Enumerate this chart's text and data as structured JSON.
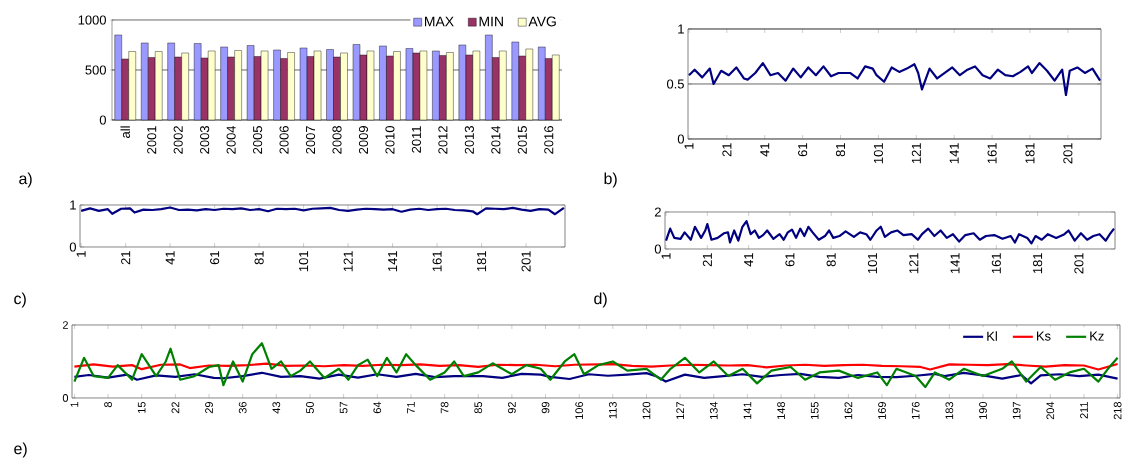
{
  "chart_data": [
    {
      "type": "bar",
      "categories": [
        "all",
        "2001",
        "2002",
        "2003",
        "2004",
        "2005",
        "2006",
        "2007",
        "2008",
        "2009",
        "2010",
        "2011",
        "2012",
        "2013",
        "2014",
        "2015",
        "2016"
      ],
      "series": [
        {
          "name": "MAX",
          "color": "#9999ff",
          "values": [
            850,
            770,
            770,
            765,
            730,
            745,
            700,
            720,
            705,
            755,
            740,
            715,
            690,
            750,
            850,
            780,
            730
          ]
        },
        {
          "name": "MIN",
          "color": "#993366",
          "values": [
            610,
            625,
            630,
            620,
            630,
            635,
            615,
            635,
            630,
            650,
            640,
            670,
            645,
            650,
            625,
            640,
            615
          ]
        },
        {
          "name": "AVG",
          "color": "#ffffcc",
          "values": [
            685,
            685,
            670,
            690,
            695,
            690,
            675,
            690,
            670,
            690,
            685,
            690,
            675,
            690,
            690,
            710,
            650
          ]
        }
      ],
      "ylim": [
        0,
        1000
      ],
      "yticks": [
        0,
        500,
        1000
      ],
      "grid": "y",
      "legend": "top right",
      "annotations": [
        "a)"
      ]
    },
    {
      "type": "line",
      "series": [
        {
          "color": "#000080",
          "x": [
            1,
            4,
            8,
            12,
            14,
            18,
            22,
            26,
            30,
            32,
            36,
            40,
            44,
            48,
            52,
            56,
            60,
            64,
            68,
            72,
            76,
            80,
            82,
            86,
            90,
            94,
            98,
            100,
            104,
            108,
            112,
            116,
            120,
            122,
            124,
            128,
            132,
            136,
            140,
            144,
            148,
            152,
            156,
            160,
            164,
            168,
            172,
            176,
            180,
            182,
            186,
            190,
            194,
            198,
            200,
            202,
            206,
            210,
            214,
            218
          ],
          "values": [
            0.58,
            0.63,
            0.56,
            0.64,
            0.5,
            0.62,
            0.58,
            0.65,
            0.55,
            0.54,
            0.6,
            0.69,
            0.58,
            0.6,
            0.53,
            0.64,
            0.56,
            0.65,
            0.58,
            0.66,
            0.57,
            0.6,
            0.6,
            0.6,
            0.55,
            0.66,
            0.64,
            0.58,
            0.52,
            0.65,
            0.61,
            0.64,
            0.68,
            0.6,
            0.45,
            0.64,
            0.55,
            0.6,
            0.65,
            0.58,
            0.63,
            0.66,
            0.58,
            0.55,
            0.63,
            0.58,
            0.57,
            0.61,
            0.66,
            0.6,
            0.69,
            0.62,
            0.53,
            0.63,
            0.4,
            0.62,
            0.65,
            0.6,
            0.64,
            0.53
          ]
        }
      ],
      "xlim": [
        0.5,
        218.5
      ],
      "xticks": [
        1,
        21,
        41,
        61,
        81,
        101,
        121,
        141,
        161,
        181,
        201
      ],
      "ylim": [
        0,
        1
      ],
      "yticks": [
        0,
        0.5,
        1
      ],
      "grid": "y",
      "annotations": [
        "b)"
      ]
    },
    {
      "type": "line",
      "series": [
        {
          "color": "#000080",
          "x": [
            1,
            5,
            9,
            13,
            15,
            19,
            23,
            25,
            29,
            33,
            37,
            41,
            45,
            49,
            53,
            57,
            61,
            65,
            69,
            73,
            77,
            81,
            85,
            89,
            93,
            97,
            101,
            105,
            109,
            113,
            117,
            121,
            125,
            129,
            133,
            137,
            141,
            145,
            149,
            153,
            157,
            161,
            165,
            169,
            173,
            177,
            179,
            183,
            187,
            191,
            195,
            199,
            203,
            207,
            211,
            214,
            218
          ],
          "values": [
            0.86,
            0.92,
            0.86,
            0.9,
            0.79,
            0.91,
            0.92,
            0.82,
            0.89,
            0.88,
            0.9,
            0.94,
            0.88,
            0.89,
            0.87,
            0.9,
            0.88,
            0.91,
            0.9,
            0.92,
            0.88,
            0.9,
            0.85,
            0.91,
            0.9,
            0.91,
            0.87,
            0.91,
            0.92,
            0.93,
            0.88,
            0.86,
            0.89,
            0.91,
            0.9,
            0.89,
            0.9,
            0.84,
            0.89,
            0.91,
            0.88,
            0.9,
            0.91,
            0.88,
            0.87,
            0.85,
            0.78,
            0.92,
            0.91,
            0.9,
            0.93,
            0.89,
            0.86,
            0.9,
            0.89,
            0.78,
            0.93
          ]
        }
      ],
      "xlim": [
        0.5,
        218.5
      ],
      "xticks": [
        1,
        21,
        41,
        61,
        81,
        101,
        121,
        141,
        161,
        181,
        201
      ],
      "ylim": [
        0,
        1
      ],
      "yticks": [
        0,
        1
      ],
      "annotations": [
        "c)"
      ]
    },
    {
      "type": "line",
      "series": [
        {
          "color": "#000080",
          "x": [
            1,
            3,
            5,
            8,
            10,
            13,
            15,
            18,
            20,
            21,
            23,
            26,
            29,
            31,
            32,
            34,
            36,
            38,
            40,
            42,
            44,
            46,
            48,
            50,
            53,
            56,
            58,
            60,
            62,
            64,
            66,
            68,
            70,
            72,
            75,
            78,
            80,
            82,
            85,
            88,
            92,
            95,
            98,
            100,
            103,
            105,
            107,
            110,
            113,
            116,
            120,
            123,
            125,
            128,
            131,
            134,
            137,
            140,
            143,
            146,
            150,
            153,
            156,
            160,
            164,
            168,
            170,
            172,
            176,
            178,
            180,
            183,
            186,
            190,
            194,
            196,
            199,
            202,
            205,
            208,
            211,
            214,
            216,
            218
          ],
          "values": [
            0.45,
            1.1,
            0.6,
            0.55,
            0.9,
            0.5,
            1.2,
            0.6,
            1.0,
            1.35,
            0.5,
            0.6,
            0.85,
            0.9,
            0.35,
            1.0,
            0.45,
            1.2,
            1.5,
            0.8,
            1.0,
            0.6,
            0.75,
            1.0,
            0.55,
            0.8,
            0.5,
            0.9,
            1.05,
            0.6,
            1.1,
            0.7,
            1.2,
            0.9,
            0.5,
            0.7,
            1.0,
            0.6,
            0.7,
            0.95,
            0.65,
            0.9,
            0.8,
            0.5,
            1.0,
            1.2,
            0.65,
            0.9,
            1.0,
            0.75,
            0.8,
            0.5,
            0.8,
            1.1,
            0.7,
            1.0,
            0.6,
            0.8,
            0.4,
            0.75,
            0.85,
            0.5,
            0.7,
            0.75,
            0.55,
            0.7,
            0.35,
            0.8,
            0.6,
            0.3,
            0.7,
            0.5,
            0.8,
            0.6,
            0.8,
            1.0,
            0.45,
            0.85,
            0.5,
            0.7,
            0.8,
            0.45,
            0.8,
            1.1
          ]
        }
      ],
      "xlim": [
        0.5,
        218.5
      ],
      "xticks": [
        1,
        21,
        41,
        61,
        81,
        101,
        121,
        141,
        161,
        181,
        201
      ],
      "ylim": [
        0,
        2
      ],
      "yticks": [
        0,
        2
      ],
      "annotations": [
        "d)"
      ]
    },
    {
      "type": "line",
      "series": [
        {
          "name": "Kl",
          "color": "#000080",
          "x": [
            1,
            4,
            8,
            12,
            14,
            18,
            22,
            26,
            30,
            32,
            36,
            40,
            44,
            48,
            52,
            56,
            60,
            64,
            68,
            72,
            76,
            80,
            82,
            86,
            90,
            94,
            98,
            100,
            104,
            108,
            112,
            116,
            120,
            122,
            124,
            128,
            132,
            136,
            140,
            144,
            148,
            152,
            156,
            160,
            164,
            168,
            172,
            176,
            180,
            182,
            186,
            190,
            194,
            198,
            200,
            202,
            206,
            210,
            214,
            218
          ],
          "values": [
            0.58,
            0.63,
            0.56,
            0.64,
            0.5,
            0.62,
            0.58,
            0.65,
            0.55,
            0.54,
            0.6,
            0.69,
            0.58,
            0.6,
            0.53,
            0.64,
            0.56,
            0.65,
            0.58,
            0.66,
            0.57,
            0.6,
            0.6,
            0.6,
            0.55,
            0.66,
            0.64,
            0.58,
            0.52,
            0.65,
            0.61,
            0.64,
            0.68,
            0.6,
            0.45,
            0.64,
            0.55,
            0.6,
            0.65,
            0.58,
            0.63,
            0.66,
            0.58,
            0.55,
            0.63,
            0.58,
            0.57,
            0.61,
            0.66,
            0.6,
            0.69,
            0.62,
            0.53,
            0.63,
            0.4,
            0.62,
            0.65,
            0.6,
            0.64,
            0.53
          ]
        },
        {
          "name": "Ks",
          "color": "#ff0000",
          "x": [
            1,
            5,
            9,
            13,
            15,
            19,
            23,
            25,
            29,
            33,
            37,
            41,
            45,
            49,
            53,
            57,
            61,
            65,
            69,
            73,
            77,
            81,
            85,
            89,
            93,
            97,
            101,
            105,
            109,
            113,
            117,
            121,
            125,
            129,
            133,
            137,
            141,
            145,
            149,
            153,
            157,
            161,
            165,
            169,
            173,
            177,
            179,
            183,
            187,
            191,
            195,
            199,
            203,
            207,
            211,
            214,
            218
          ],
          "values": [
            0.86,
            0.92,
            0.86,
            0.9,
            0.79,
            0.91,
            0.92,
            0.82,
            0.89,
            0.88,
            0.9,
            0.94,
            0.88,
            0.89,
            0.87,
            0.9,
            0.88,
            0.91,
            0.9,
            0.92,
            0.88,
            0.9,
            0.85,
            0.91,
            0.9,
            0.91,
            0.87,
            0.91,
            0.92,
            0.93,
            0.88,
            0.86,
            0.89,
            0.91,
            0.9,
            0.89,
            0.9,
            0.84,
            0.89,
            0.91,
            0.88,
            0.9,
            0.91,
            0.88,
            0.87,
            0.85,
            0.78,
            0.92,
            0.91,
            0.9,
            0.93,
            0.89,
            0.86,
            0.9,
            0.89,
            0.78,
            0.93
          ]
        },
        {
          "name": "Kz",
          "color": "#008000",
          "x": [
            1,
            3,
            5,
            8,
            10,
            13,
            15,
            18,
            20,
            21,
            23,
            26,
            29,
            31,
            32,
            34,
            36,
            38,
            40,
            42,
            44,
            46,
            48,
            50,
            53,
            56,
            58,
            60,
            62,
            64,
            66,
            68,
            70,
            72,
            75,
            78,
            80,
            82,
            85,
            88,
            92,
            95,
            98,
            100,
            103,
            105,
            107,
            110,
            113,
            116,
            120,
            123,
            125,
            128,
            131,
            134,
            137,
            140,
            143,
            146,
            150,
            153,
            156,
            160,
            164,
            168,
            170,
            172,
            176,
            178,
            180,
            183,
            186,
            190,
            194,
            196,
            199,
            202,
            205,
            208,
            211,
            214,
            216,
            218
          ],
          "values": [
            0.45,
            1.1,
            0.6,
            0.55,
            0.9,
            0.5,
            1.2,
            0.6,
            1.0,
            1.35,
            0.5,
            0.6,
            0.85,
            0.9,
            0.35,
            1.0,
            0.45,
            1.2,
            1.5,
            0.8,
            1.0,
            0.6,
            0.75,
            1.0,
            0.55,
            0.8,
            0.5,
            0.9,
            1.05,
            0.6,
            1.1,
            0.7,
            1.2,
            0.9,
            0.5,
            0.7,
            1.0,
            0.6,
            0.7,
            0.95,
            0.65,
            0.9,
            0.8,
            0.5,
            1.0,
            1.2,
            0.65,
            0.9,
            1.0,
            0.75,
            0.8,
            0.5,
            0.8,
            1.1,
            0.7,
            1.0,
            0.6,
            0.8,
            0.4,
            0.75,
            0.85,
            0.5,
            0.7,
            0.75,
            0.55,
            0.7,
            0.35,
            0.8,
            0.6,
            0.3,
            0.7,
            0.5,
            0.8,
            0.6,
            0.8,
            1.0,
            0.45,
            0.85,
            0.5,
            0.7,
            0.8,
            0.45,
            0.8,
            1.1
          ]
        }
      ],
      "xlim": [
        0.5,
        218.5
      ],
      "xticks": [
        1,
        8,
        15,
        22,
        29,
        36,
        43,
        50,
        57,
        64,
        71,
        78,
        85,
        92,
        99,
        106,
        113,
        120,
        127,
        134,
        141,
        148,
        155,
        162,
        169,
        176,
        183,
        190,
        197,
        204,
        211,
        218
      ],
      "ylim": [
        0,
        2
      ],
      "yticks": [
        0,
        2
      ],
      "legend": "top right",
      "annotations": [
        "e)"
      ]
    }
  ]
}
